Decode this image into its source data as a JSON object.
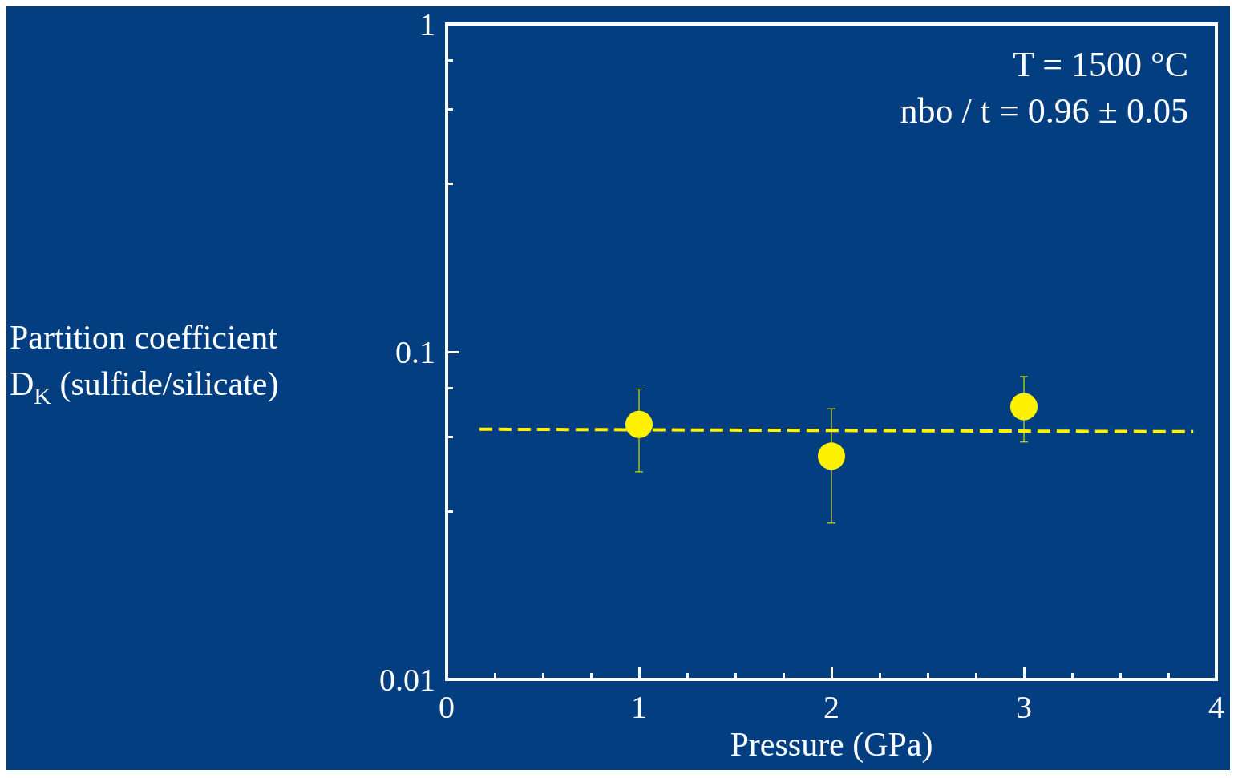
{
  "chart_data": {
    "type": "scatter",
    "xlabel": "Pressure (GPa)",
    "ylabel": "Partition coefficient\nD$_{K}$ (sulfide/silicate)",
    "annotations": [
      "T = 1500 °C",
      "nbo / t = 0.96 ± 0.05"
    ],
    "xlim": [
      0,
      4
    ],
    "xticks": [
      0,
      1,
      2,
      3,
      4
    ],
    "ylim": [
      0.01,
      1
    ],
    "yticks": [
      0.01,
      0.1,
      1
    ],
    "log": "y",
    "grid": false,
    "series": [
      {
        "color": "#fff200",
        "x": [
          1,
          2,
          3
        ],
        "values": [
          0.06,
          0.048,
          0.068
        ],
        "errors": [
          [
            0.043,
            0.077
          ],
          [
            0.03,
            0.067
          ],
          [
            0.053,
            0.084
          ]
        ],
        "marker": "circle"
      },
      {
        "type": "line",
        "color": "#fff200",
        "x": [
          0.17,
          3.88
        ],
        "values": [
          0.058,
          0.057
        ],
        "line_style": "dashed",
        "marker": "none"
      }
    ]
  }
}
